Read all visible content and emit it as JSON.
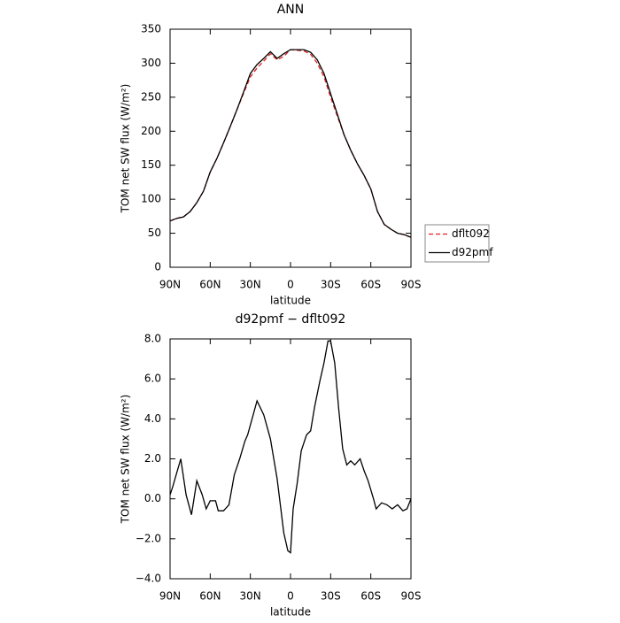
{
  "chart_data": [
    {
      "type": "line",
      "title": "ANN",
      "xlabel": "latitude",
      "ylabel": "TOM net SW flux (W/m²)",
      "xlim": [
        90,
        -90
      ],
      "xticks": [
        {
          "value": 90,
          "label": "90N"
        },
        {
          "value": 60,
          "label": "60N"
        },
        {
          "value": 30,
          "label": "30N"
        },
        0,
        {
          "value": -30,
          "label": "30S"
        },
        {
          "value": -60,
          "label": "60S"
        },
        {
          "value": -90,
          "label": "90S"
        }
      ],
      "ylim": [
        0,
        350
      ],
      "yticks": [
        0,
        50,
        100,
        150,
        200,
        250,
        300,
        350
      ],
      "legend": "right",
      "x": [
        90,
        85,
        80,
        75,
        70,
        65,
        60,
        55,
        50,
        45,
        40,
        35,
        30,
        25,
        20,
        15,
        10,
        5,
        0,
        -5,
        -10,
        -15,
        -20,
        -25,
        -30,
        -35,
        -40,
        -45,
        -50,
        -55,
        -60,
        -65,
        -70,
        -75,
        -80,
        -85,
        -90
      ],
      "series": [
        {
          "name": "dflt092",
          "color": "#e02020",
          "style": "dashed",
          "values": [
            68,
            72,
            74,
            82,
            95,
            112,
            140,
            160,
            183,
            207,
            232,
            256,
            280,
            293,
            303,
            314,
            305,
            310,
            320,
            319,
            318,
            313,
            300,
            280,
            250,
            222,
            195,
            172,
            152,
            135,
            115,
            82,
            63,
            56,
            50,
            48,
            44
          ]
        },
        {
          "name": "d92pmf",
          "color": "#000000",
          "style": "solid",
          "values": [
            68,
            72,
            74,
            82,
            95,
            112,
            140,
            160,
            183,
            207,
            232,
            258,
            285,
            298,
            307,
            317,
            307,
            314,
            320,
            320,
            320,
            316,
            305,
            285,
            255,
            225,
            195,
            172,
            152,
            135,
            115,
            82,
            63,
            56,
            50,
            48,
            44
          ]
        }
      ]
    },
    {
      "type": "line",
      "title": "d92pmf − dflt092",
      "xlabel": "latitude",
      "ylabel": "TOM net SW flux (W/m²)",
      "xlim": [
        90,
        -90
      ],
      "xticks": [
        {
          "value": 90,
          "label": "90N"
        },
        {
          "value": 60,
          "label": "60N"
        },
        {
          "value": 30,
          "label": "30N"
        },
        0,
        {
          "value": -30,
          "label": "30S"
        },
        {
          "value": -60,
          "label": "60S"
        },
        {
          "value": -90,
          "label": "90S"
        }
      ],
      "ylim": [
        -4,
        8
      ],
      "yticks": [
        {
          "value": -4,
          "label": "−4.0"
        },
        {
          "value": -2,
          "label": "−2.0"
        },
        {
          "value": 0,
          "label": "0.0"
        },
        {
          "value": 2,
          "label": "2.0"
        },
        {
          "value": 4,
          "label": "4.0"
        },
        {
          "value": 6,
          "label": "6.0"
        },
        {
          "value": 8,
          "label": "8.0"
        }
      ],
      "x": [
        90,
        88,
        82,
        78,
        74,
        70,
        66,
        63,
        60,
        56,
        54,
        50,
        46,
        42,
        38,
        34,
        32,
        25,
        20,
        15,
        10,
        5,
        2,
        0,
        -2,
        -5,
        -8,
        -12,
        -15,
        -18,
        -22,
        -25,
        -28,
        -30,
        -33,
        -36,
        -39,
        -42,
        -45,
        -48,
        -52,
        -55,
        -58,
        -62,
        -64,
        -68,
        -72,
        -76,
        -80,
        -84,
        -87,
        -90
      ],
      "series": [
        {
          "name": "d92pmf − dflt092",
          "color": "#000000",
          "style": "solid",
          "values": [
            0.2,
            0.6,
            2.0,
            0.2,
            -0.8,
            0.9,
            0.2,
            -0.5,
            -0.1,
            -0.1,
            -0.6,
            -0.6,
            -0.3,
            1.2,
            2.0,
            2.9,
            3.2,
            4.9,
            4.2,
            3.0,
            1.0,
            -1.7,
            -2.6,
            -2.7,
            -0.5,
            0.8,
            2.4,
            3.2,
            3.4,
            4.6,
            5.9,
            6.8,
            7.9,
            7.9,
            6.8,
            4.5,
            2.5,
            1.7,
            1.9,
            1.7,
            2.0,
            1.4,
            0.9,
            0,
            -0.5,
            -0.2,
            -0.3,
            -0.5,
            -0.3,
            -0.6,
            -0.5,
            0.0
          ]
        }
      ]
    }
  ]
}
